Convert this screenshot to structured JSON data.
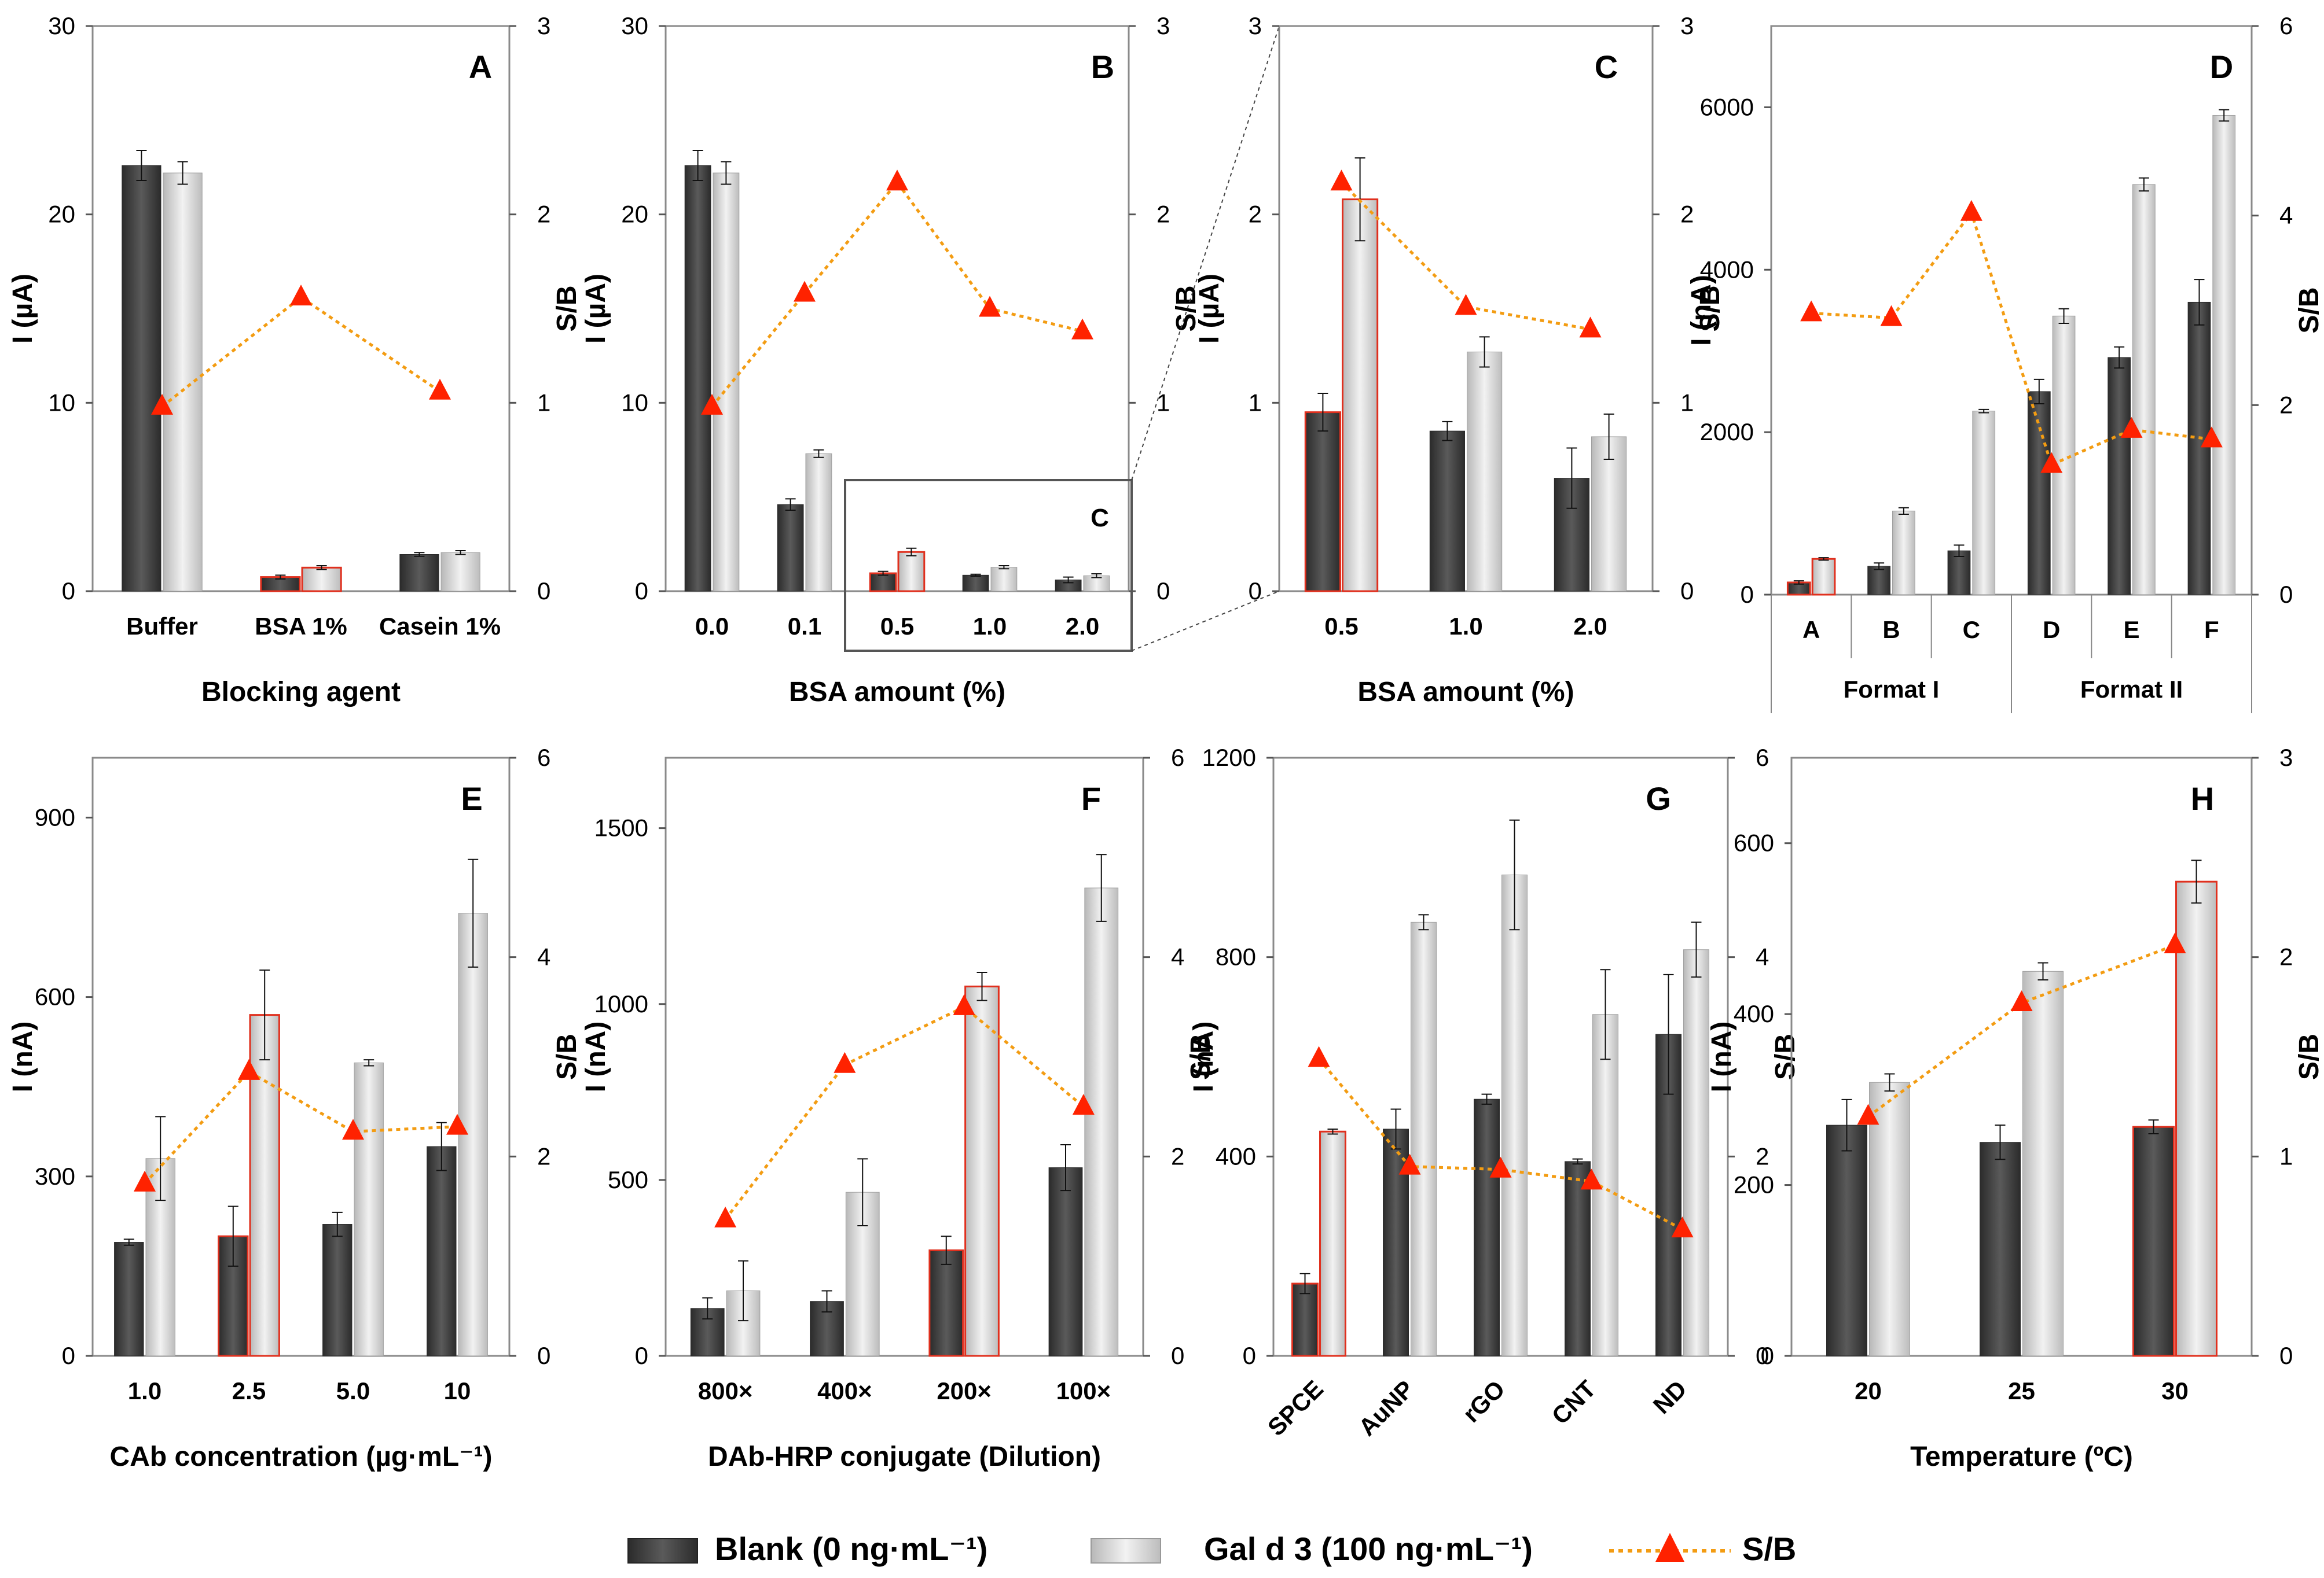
{
  "colors": {
    "blank_bar": "#3d3d3d",
    "gal_bar": "#cfcfcf",
    "highlight": "#e0301e",
    "sb_line": "#f39c12",
    "sb_marker": "#ff2200",
    "frame": "#8a8a8a"
  },
  "legend": {
    "blank": "Blank (0 ng·mL⁻¹)",
    "gal": "Gal d 3 (100 ng·mL⁻¹)",
    "sb": "S/B"
  },
  "chart_data": [
    {
      "panel": "A",
      "type": "bar",
      "categories": [
        "Buffer",
        "BSA 1%",
        "Casein 1%"
      ],
      "xlabel": "Blocking agent",
      "ylabel": "I (µA)",
      "y2label": "S/B",
      "ylim": [
        0,
        30
      ],
      "yticks": [
        0,
        10,
        20,
        30
      ],
      "y2lim": [
        0,
        3
      ],
      "y2ticks": [
        0,
        1,
        2,
        3
      ],
      "series": [
        {
          "name": "Blank (0 ng·mL⁻¹)",
          "values": [
            22.6,
            0.75,
            1.95
          ],
          "errors": [
            0.8,
            0.1,
            0.1
          ]
        },
        {
          "name": "Gal d 3 (100 ng·mL⁻¹)",
          "values": [
            22.2,
            1.25,
            2.05
          ],
          "errors": [
            0.6,
            0.1,
            0.1
          ]
        },
        {
          "name": "S/B",
          "values": [
            0.98,
            1.56,
            1.06
          ]
        }
      ],
      "highlight_index": 1
    },
    {
      "panel": "B",
      "type": "bar",
      "categories": [
        "0.0",
        "0.1",
        "0.5",
        "1.0",
        "2.0"
      ],
      "xlabel": "BSA amount (%)",
      "ylabel": "I (µA)",
      "y2label": "S/B",
      "ylim": [
        0,
        30
      ],
      "yticks": [
        0,
        10,
        20,
        30
      ],
      "y2lim": [
        0,
        3
      ],
      "y2ticks": [
        0,
        1,
        2,
        3
      ],
      "inset_label": "C",
      "series": [
        {
          "name": "Blank (0 ng·mL⁻¹)",
          "values": [
            22.6,
            4.6,
            0.95,
            0.85,
            0.6
          ],
          "errors": [
            0.8,
            0.3,
            0.1,
            0.05,
            0.15
          ]
        },
        {
          "name": "Gal d 3 (100 ng·mL⁻¹)",
          "values": [
            22.2,
            7.3,
            2.08,
            1.27,
            0.82
          ],
          "errors": [
            0.6,
            0.2,
            0.2,
            0.08,
            0.1
          ]
        },
        {
          "name": "S/B",
          "values": [
            0.98,
            1.58,
            2.17,
            1.5,
            1.38
          ]
        }
      ],
      "highlight_index": 2
    },
    {
      "panel": "C",
      "type": "bar",
      "categories": [
        "0.5",
        "1.0",
        "2.0"
      ],
      "xlabel": "BSA amount (%)",
      "ylabel": "I (µA)",
      "y2label": "S/B",
      "ylim": [
        0,
        3
      ],
      "yticks": [
        0,
        1,
        2,
        3
      ],
      "y2lim": [
        0,
        3
      ],
      "y2ticks": [
        0,
        1,
        2,
        3
      ],
      "series": [
        {
          "name": "Blank (0 ng·mL⁻¹)",
          "values": [
            0.95,
            0.85,
            0.6
          ],
          "errors": [
            0.1,
            0.05,
            0.16
          ]
        },
        {
          "name": "Gal d 3 (100 ng·mL⁻¹)",
          "values": [
            2.08,
            1.27,
            0.82
          ],
          "errors": [
            0.22,
            0.08,
            0.12
          ]
        },
        {
          "name": "S/B",
          "values": [
            2.17,
            1.51,
            1.39
          ]
        }
      ],
      "highlight_index": 0
    },
    {
      "panel": "D",
      "type": "bar",
      "categories": [
        "A",
        "B",
        "C",
        "D",
        "E",
        "F"
      ],
      "groups": [
        {
          "label": "Format I",
          "span": [
            0,
            2
          ]
        },
        {
          "label": "Format II",
          "span": [
            3,
            5
          ]
        }
      ],
      "xlabel": "",
      "ylabel": "I (nA)",
      "y2label": "S/B",
      "ylim": [
        0,
        7000
      ],
      "yticks": [
        0,
        2000,
        4000,
        6000
      ],
      "y2lim": [
        0,
        6
      ],
      "y2ticks": [
        0,
        2,
        4,
        6
      ],
      "series": [
        {
          "name": "Blank (0 ng·mL⁻¹)",
          "values": [
            150,
            350,
            540,
            2500,
            2920,
            3600
          ],
          "errors": [
            20,
            40,
            70,
            150,
            130,
            280
          ]
        },
        {
          "name": "Gal d 3 (100 ng·mL⁻¹)",
          "values": [
            440,
            1030,
            2260,
            3430,
            5050,
            5900
          ],
          "errors": [
            15,
            40,
            20,
            90,
            80,
            70
          ]
        },
        {
          "name": "S/B",
          "values": [
            2.97,
            2.92,
            4.03,
            1.37,
            1.74,
            1.64
          ]
        }
      ],
      "highlight_index": 0
    },
    {
      "panel": "E",
      "type": "bar",
      "categories": [
        "1.0",
        "2.5",
        "5.0",
        "10"
      ],
      "xlabel": "CAb concentration (µg·mL⁻¹)",
      "ylabel": "I (nA)",
      "y2label": "S/B",
      "ylim": [
        0,
        1000
      ],
      "yticks": [
        0,
        300,
        600,
        900
      ],
      "y2lim": [
        0,
        6
      ],
      "y2ticks": [
        0,
        2,
        4,
        6
      ],
      "series": [
        {
          "name": "Blank (0 ng·mL⁻¹)",
          "values": [
            190,
            200,
            220,
            350
          ],
          "errors": [
            5,
            50,
            20,
            40
          ]
        },
        {
          "name": "Gal d 3 (100 ng·mL⁻¹)",
          "values": [
            330,
            570,
            490,
            740
          ],
          "errors": [
            70,
            75,
            5,
            90
          ]
        },
        {
          "name": "S/B",
          "values": [
            1.73,
            2.85,
            2.25,
            2.3
          ]
        }
      ],
      "highlight_index": 1
    },
    {
      "panel": "F",
      "type": "bar",
      "categories": [
        "800×",
        "400×",
        "200×",
        "100×"
      ],
      "xlabel": "DAb-HRP conjugate (Dilution)",
      "ylabel": "I (nA)",
      "y2label": "S/B",
      "ylim": [
        0,
        1700
      ],
      "yticks": [
        0,
        500,
        1000,
        1500
      ],
      "y2lim": [
        0,
        6
      ],
      "y2ticks": [
        0,
        2,
        4,
        6
      ],
      "series": [
        {
          "name": "Blank (0 ng·mL⁻¹)",
          "values": [
            135,
            155,
            300,
            535
          ],
          "errors": [
            30,
            30,
            40,
            65
          ]
        },
        {
          "name": "Gal d 3 (100 ng·mL⁻¹)",
          "values": [
            185,
            465,
            1050,
            1330
          ],
          "errors": [
            85,
            95,
            40,
            95
          ]
        },
        {
          "name": "S/B",
          "values": [
            1.37,
            2.92,
            3.5,
            2.5
          ]
        }
      ],
      "highlight_index": 2
    },
    {
      "panel": "G",
      "type": "bar",
      "categories": [
        "SPCE",
        "AuNP",
        "rGO",
        "CNT",
        "ND"
      ],
      "xlabel": "",
      "ylabel": "I (nA)",
      "y2label": "S/B",
      "ylim": [
        0,
        1200
      ],
      "yticks": [
        0,
        400,
        800,
        1200
      ],
      "y2lim": [
        0,
        6
      ],
      "y2ticks": [
        0,
        2,
        4,
        6
      ],
      "series": [
        {
          "name": "Blank (0 ng·mL⁻¹)",
          "values": [
            145,
            455,
            515,
            390,
            645
          ],
          "errors": [
            20,
            40,
            10,
            5,
            120
          ]
        },
        {
          "name": "Gal d 3 (100 ng·mL⁻¹)",
          "values": [
            450,
            870,
            965,
            685,
            815
          ],
          "errors": [
            5,
            15,
            110,
            90,
            55
          ]
        },
        {
          "name": "S/B",
          "values": [
            2.98,
            1.9,
            1.87,
            1.75,
            1.27
          ]
        }
      ],
      "highlight_index": 0
    },
    {
      "panel": "H",
      "type": "bar",
      "categories": [
        "20",
        "25",
        "30"
      ],
      "xlabel": "Temperature (ºC)",
      "ylabel": "I (nA)",
      "y2label": "S/B",
      "ylim": [
        0,
        700
      ],
      "yticks": [
        0,
        200,
        400,
        600
      ],
      "y2lim": [
        0,
        3
      ],
      "y2ticks": [
        0,
        1,
        2,
        3
      ],
      "series": [
        {
          "name": "Blank (0 ng·mL⁻¹)",
          "values": [
            270,
            250,
            268
          ],
          "errors": [
            30,
            20,
            8
          ]
        },
        {
          "name": "Gal d 3 (100 ng·mL⁻¹)",
          "values": [
            320,
            450,
            555
          ],
          "errors": [
            10,
            10,
            25
          ]
        },
        {
          "name": "S/B",
          "values": [
            1.2,
            1.77,
            2.06
          ]
        }
      ],
      "highlight_index": 2
    }
  ]
}
